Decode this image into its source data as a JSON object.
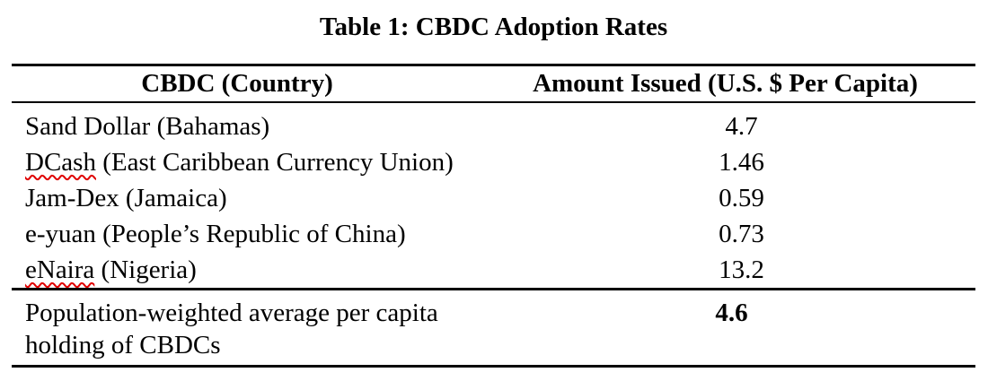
{
  "title": "Table 1: CBDC Adoption Rates",
  "table": {
    "headers": {
      "country": "CBDC (Country)",
      "amount": "Amount Issued (U.S. $ Per Capita)"
    },
    "rows": [
      {
        "mark": "",
        "rest": "Sand Dollar (Bahamas)",
        "value": "4.7"
      },
      {
        "mark": "DCash",
        "rest": " (East Caribbean Currency Union)",
        "value": "1.46"
      },
      {
        "mark": "",
        "rest": "Jam-Dex (Jamaica)",
        "value": "0.59"
      },
      {
        "mark": "",
        "rest": "e-yuan (People’s Republic of China)",
        "value": "0.73"
      },
      {
        "mark": "eNaira",
        "rest": " (Nigeria)",
        "value": "13.2"
      }
    ],
    "footer": {
      "label_line1": "Population-weighted average per capita",
      "label_line2": "holding of CBDCs",
      "value": "4.6"
    }
  },
  "colors": {
    "text": "#000000",
    "rule": "#000000",
    "spellcheck": "#e00000"
  },
  "chart_data": {
    "type": "table",
    "title": "Table 1: CBDC Adoption Rates",
    "columns": [
      "CBDC (Country)",
      "Amount Issued (U.S. $ Per Capita)"
    ],
    "rows": [
      [
        "Sand Dollar (Bahamas)",
        4.7
      ],
      [
        "DCash (East Caribbean Currency Union)",
        1.46
      ],
      [
        "Jam-Dex (Jamaica)",
        0.59
      ],
      [
        "e-yuan (People’s Republic of China)",
        0.73
      ],
      [
        "eNaira (Nigeria)",
        13.2
      ]
    ],
    "summary_row": [
      "Population-weighted average per capita holding of CBDCs",
      4.6
    ]
  }
}
